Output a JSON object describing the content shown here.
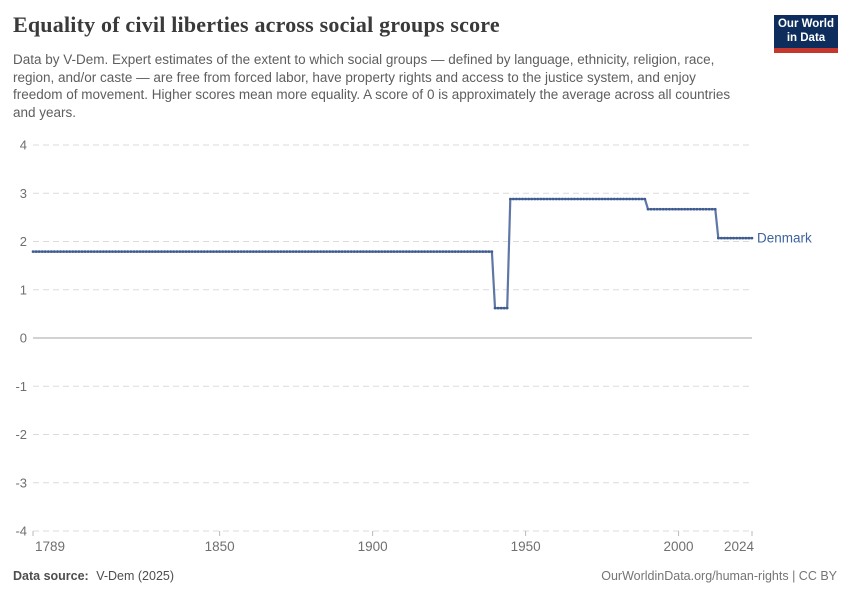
{
  "header": {
    "title": "Equality of civil liberties across social groups score",
    "subtitle": "Data by V-Dem. Expert estimates of the extent to which social groups — defined by language, ethnicity, religion, race, region, and/or caste — are free from forced labor, have property rights and access to the justice system, and enjoy freedom of movement. Higher scores mean more equality. A score of 0 is approximately the average across all countries and years.",
    "logo": {
      "line1": "Our World",
      "line2": "in Data",
      "bg_color": "#0d2e5c",
      "bar_color": "#c5362c"
    }
  },
  "chart_data": {
    "type": "line",
    "title": "Equality of civil liberties across social groups score",
    "xlabel": "",
    "ylabel": "",
    "xlim": [
      1789,
      2024
    ],
    "ylim": [
      -4,
      4
    ],
    "x_ticks": [
      1789,
      1850,
      1900,
      1950,
      2000,
      2024
    ],
    "y_ticks": [
      4,
      3,
      2,
      1,
      0,
      -1,
      -2,
      -3,
      -4
    ],
    "grid": "horizontal dashed gridlines, solid zero line",
    "legend_position": "label at end of line",
    "series": [
      {
        "name": "Denmark",
        "color": "#5f77a6",
        "dot_color": "#3d5a8f",
        "label_color": "#3d649f",
        "points": [
          [
            1789,
            1.79
          ],
          [
            1939,
            1.79
          ],
          [
            1940,
            0.62
          ],
          [
            1944,
            0.62
          ],
          [
            1945,
            2.88
          ],
          [
            1989,
            2.88
          ],
          [
            1990,
            2.67
          ],
          [
            2012,
            2.67
          ],
          [
            2013,
            2.07
          ],
          [
            2024,
            2.07
          ]
        ]
      }
    ],
    "style": {
      "gridline_color": "#dbdbdb",
      "zeroline_color": "#a6a6a6",
      "tick_label_color": "#6f6f6f",
      "tick_mark_color": "#b9b9b9"
    }
  },
  "footer": {
    "source_label": "Data source:",
    "source_value": "V-Dem (2025)",
    "credit": "OurWorldinData.org/human-rights | CC BY"
  }
}
